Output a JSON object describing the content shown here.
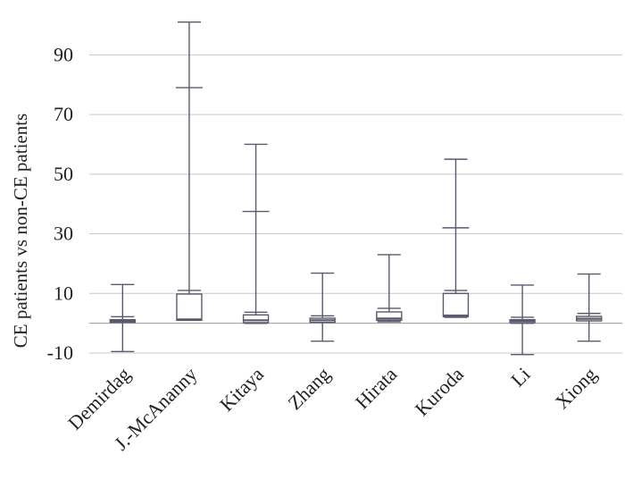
{
  "chart_data": {
    "type": "box",
    "title": "",
    "xlabel": "",
    "ylabel": "CE patients vs non-CE patients",
    "ylim": [
      -10,
      100
    ],
    "yticks": [
      -10,
      10,
      30,
      50,
      70,
      90
    ],
    "grid": true,
    "categories": [
      "Demirdag",
      "J.-McAnanny",
      "Kitaya",
      "Zhang",
      "Hirata",
      "Kuroda",
      "Li",
      "Xiong"
    ],
    "boxes": [
      {
        "min": -9.5,
        "lower_cap": 0.5,
        "q1": 0.3,
        "median": 0.8,
        "q3": 1.2,
        "upper_cap": 2.2,
        "max": 13.0
      },
      {
        "min": 1.0,
        "lower_cap": 1.0,
        "q1": 1.0,
        "median": 1.3,
        "q3": 9.8,
        "upper_cap": 11.0,
        "upper_mark": 79.0,
        "max": 101.0
      },
      {
        "min": 0.0,
        "lower_cap": 0.0,
        "q1": 0.2,
        "median": 1.0,
        "q3": 2.8,
        "upper_cap": 3.7,
        "upper_mark": 37.5,
        "max": 60.0
      },
      {
        "min": -6.0,
        "lower_cap": 0.5,
        "q1": 0.3,
        "median": 1.0,
        "q3": 1.7,
        "upper_cap": 2.5,
        "max": 16.8
      },
      {
        "min": 0.5,
        "lower_cap": 0.5,
        "q1": 1.0,
        "median": 1.6,
        "q3": 3.8,
        "upper_cap": 5.0,
        "max": 23.0
      },
      {
        "min": 2.0,
        "lower_cap": 2.0,
        "q1": 2.2,
        "median": 2.6,
        "q3": 10.0,
        "upper_cap": 11.0,
        "upper_mark": 32.0,
        "max": 55.0
      },
      {
        "min": -10.5,
        "lower_cap": 0.0,
        "q1": 0.2,
        "median": 0.8,
        "q3": 1.2,
        "upper_cap": 2.0,
        "max": 12.8
      },
      {
        "min": -6.0,
        "lower_cap": 0.8,
        "q1": 0.8,
        "median": 1.5,
        "q3": 2.3,
        "upper_cap": 3.3,
        "max": 16.5
      }
    ]
  }
}
